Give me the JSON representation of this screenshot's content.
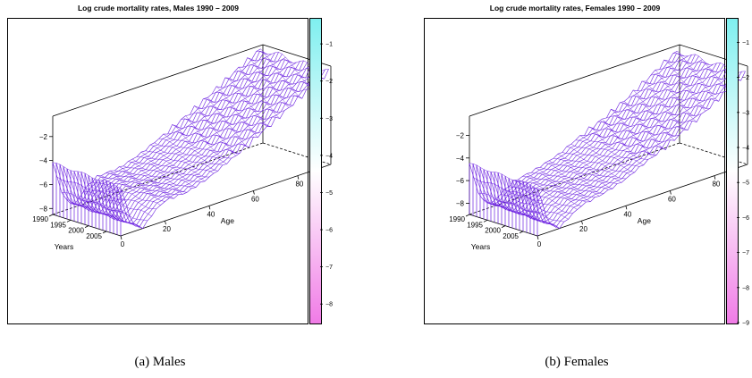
{
  "chart_data": [
    {
      "type": "surface",
      "title": "Log crude mortality rates, Males 1990 – 2009",
      "caption": "(a)  Males",
      "x_axis": {
        "label": "Years",
        "ticks": [
          "1990",
          "1995",
          "2000",
          "2005"
        ],
        "range": [
          1990,
          2009
        ]
      },
      "y_axis": {
        "label": "Age",
        "ticks": [
          "0",
          "20",
          "40",
          "60",
          "80"
        ],
        "range": [
          0,
          95
        ]
      },
      "z_axis": {
        "label": "",
        "ticks": [
          "−2",
          "−4",
          "−6",
          "−8"
        ],
        "range": [
          -8.5,
          -0.3
        ]
      },
      "colorbar": {
        "ticks": [
          "−1",
          "−2",
          "−3",
          "−4",
          "−5",
          "−6",
          "−7",
          "−8"
        ],
        "range": [
          -8.5,
          -0.3
        ],
        "low_color": "#f07be6",
        "high_color": "#7fefef"
      },
      "surface_color": "#6a1fe0",
      "profile": {
        "age": [
          0,
          5,
          10,
          15,
          20,
          30,
          40,
          50,
          60,
          70,
          80,
          90,
          95
        ],
        "log_rate": [
          -4.2,
          -7.5,
          -8.3,
          -7.2,
          -6.6,
          -6.5,
          -5.9,
          -5.0,
          -4.1,
          -3.1,
          -2.0,
          -1.0,
          -0.5
        ]
      }
    },
    {
      "type": "surface",
      "title": "Log crude mortality rates, Females 1990 – 2009",
      "caption": "(b)  Females",
      "x_axis": {
        "label": "Years",
        "ticks": [
          "1990",
          "1995",
          "2000",
          "2005"
        ],
        "range": [
          1990,
          2009
        ]
      },
      "y_axis": {
        "label": "Age",
        "ticks": [
          "0",
          "20",
          "40",
          "60",
          "80"
        ],
        "range": [
          0,
          95
        ]
      },
      "z_axis": {
        "label": "",
        "ticks": [
          "−2",
          "−4",
          "−6",
          "−8"
        ],
        "range": [
          -9.0,
          -0.3
        ]
      },
      "colorbar": {
        "ticks": [
          "−1",
          "−2",
          "−3",
          "−4",
          "−5",
          "−6",
          "−7",
          "−8",
          "−9"
        ],
        "range": [
          -9.0,
          -0.3
        ],
        "low_color": "#f07be6",
        "high_color": "#7fefef"
      },
      "surface_color": "#6a1fe0",
      "profile": {
        "age": [
          0,
          5,
          10,
          15,
          20,
          30,
          40,
          50,
          60,
          70,
          80,
          90,
          95
        ],
        "log_rate": [
          -4.5,
          -8.0,
          -8.7,
          -8.0,
          -7.4,
          -7.0,
          -6.4,
          -5.4,
          -4.6,
          -3.6,
          -2.4,
          -1.2,
          -0.7
        ]
      }
    }
  ]
}
